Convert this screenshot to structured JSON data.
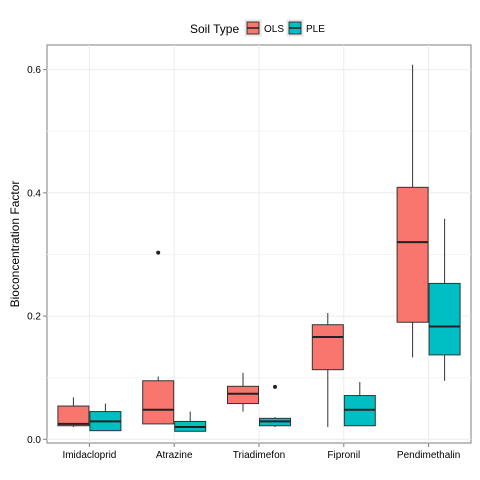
{
  "chart_data": {
    "type": "boxplot",
    "ylabel": "Bioconcentration Factor",
    "xlabel": "",
    "ylim": [
      -0.006,
      0.64
    ],
    "y_ticks": [
      "0.0",
      "0.2",
      "0.4",
      "0.6"
    ],
    "y_tick_values": [
      0,
      0.2,
      0.4,
      0.6
    ],
    "grid": true,
    "legend": {
      "title": "Soil Type",
      "position": "top"
    },
    "categories": [
      "Imidacloprid",
      "Atrazine",
      "Triadimefon",
      "Fipronil",
      "Pendimethalin"
    ],
    "series": [
      {
        "name": "OLS",
        "color": "#F8766D",
        "boxes": [
          {
            "min": 0.02,
            "q1": 0.022,
            "median": 0.025,
            "q3": 0.054,
            "max": 0.068,
            "outliers": []
          },
          {
            "min": 0.025,
            "q1": 0.025,
            "median": 0.048,
            "q3": 0.095,
            "max": 0.102,
            "outliers": [
              0.303
            ]
          },
          {
            "min": 0.045,
            "q1": 0.058,
            "median": 0.074,
            "q3": 0.086,
            "max": 0.108,
            "outliers": []
          },
          {
            "min": 0.02,
            "q1": 0.113,
            "median": 0.166,
            "q3": 0.186,
            "max": 0.205,
            "outliers": []
          },
          {
            "min": 0.133,
            "q1": 0.19,
            "median": 0.32,
            "q3": 0.409,
            "max": 0.608,
            "outliers": []
          }
        ]
      },
      {
        "name": "PLE",
        "color": "#00BFC4",
        "boxes": [
          {
            "min": 0.014,
            "q1": 0.014,
            "median": 0.029,
            "q3": 0.045,
            "max": 0.058,
            "outliers": []
          },
          {
            "min": 0.013,
            "q1": 0.013,
            "median": 0.02,
            "q3": 0.029,
            "max": 0.045,
            "outliers": []
          },
          {
            "min": 0.02,
            "q1": 0.022,
            "median": 0.029,
            "q3": 0.034,
            "max": 0.036,
            "outliers": [
              0.085
            ]
          },
          {
            "min": 0.022,
            "q1": 0.022,
            "median": 0.048,
            "q3": 0.071,
            "max": 0.093,
            "outliers": []
          },
          {
            "min": 0.095,
            "q1": 0.137,
            "median": 0.183,
            "q3": 0.253,
            "max": 0.358,
            "outliers": []
          }
        ]
      }
    ]
  }
}
